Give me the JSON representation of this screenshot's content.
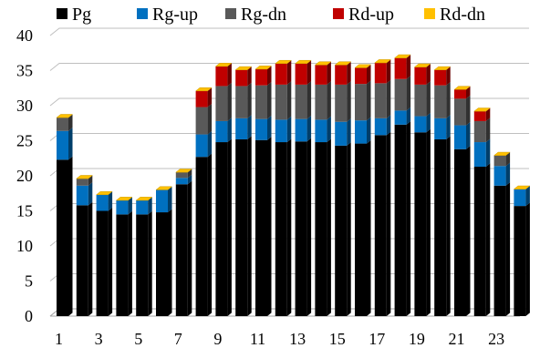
{
  "chart_data": {
    "type": "bar",
    "stacked": true,
    "style": "3d",
    "categories": [
      "1",
      "2",
      "3",
      "4",
      "5",
      "6",
      "7",
      "8",
      "9",
      "10",
      "11",
      "12",
      "13",
      "14",
      "15",
      "16",
      "17",
      "18",
      "19",
      "20",
      "21",
      "22",
      "23",
      "24"
    ],
    "x_tick_labels": [
      "1",
      "3",
      "5",
      "7",
      "9",
      "11",
      "13",
      "15",
      "17",
      "19",
      "21",
      "23"
    ],
    "y_tick_labels": [
      "0",
      "5",
      "10",
      "15",
      "20",
      "25",
      "30",
      "35",
      "40"
    ],
    "ylim": [
      0,
      40
    ],
    "grid": true,
    "legend_position": "top",
    "series": [
      {
        "name": "Pg",
        "color": "#000000",
        "values": [
          22.3,
          15.8,
          15.0,
          14.5,
          14.5,
          14.8,
          18.8,
          22.7,
          24.8,
          25.2,
          25.1,
          24.8,
          24.9,
          24.8,
          24.3,
          24.6,
          25.8,
          27.3,
          26.2,
          25.2,
          23.8,
          21.3,
          18.6,
          15.7
        ]
      },
      {
        "name": "Rg-up",
        "color": "#0070C0",
        "values": [
          4.1,
          2.8,
          2.3,
          2.0,
          2.0,
          3.2,
          0.9,
          3.2,
          3.0,
          3.0,
          3.0,
          3.2,
          3.2,
          3.2,
          3.4,
          3.3,
          2.4,
          2.0,
          2.3,
          3.0,
          3.4,
          3.5,
          2.8,
          2.4
        ]
      },
      {
        "name": "Rg-dn",
        "color": "#595959",
        "values": [
          1.9,
          1.0,
          0,
          0,
          0,
          0,
          0.8,
          3.9,
          5.0,
          4.6,
          4.8,
          5.0,
          4.9,
          5.0,
          5.3,
          5.2,
          5.0,
          4.5,
          4.5,
          4.7,
          3.8,
          3.0,
          1.5,
          0
        ]
      },
      {
        "name": "Rd-up",
        "color": "#C00000",
        "values": [
          0,
          0,
          0,
          0,
          0,
          0,
          0,
          2.3,
          2.8,
          2.3,
          2.3,
          3.0,
          3.0,
          2.8,
          2.8,
          2.3,
          2.9,
          3.0,
          2.5,
          2.2,
          1.3,
          1.4,
          0,
          0
        ]
      },
      {
        "name": "Rd-dn",
        "color": "#FFC000",
        "values": [
          0,
          0,
          0,
          0,
          0,
          0,
          0,
          0,
          0,
          0,
          0,
          0,
          0,
          0,
          0,
          0,
          0,
          0,
          0,
          0,
          0,
          0,
          0,
          0
        ]
      }
    ]
  }
}
